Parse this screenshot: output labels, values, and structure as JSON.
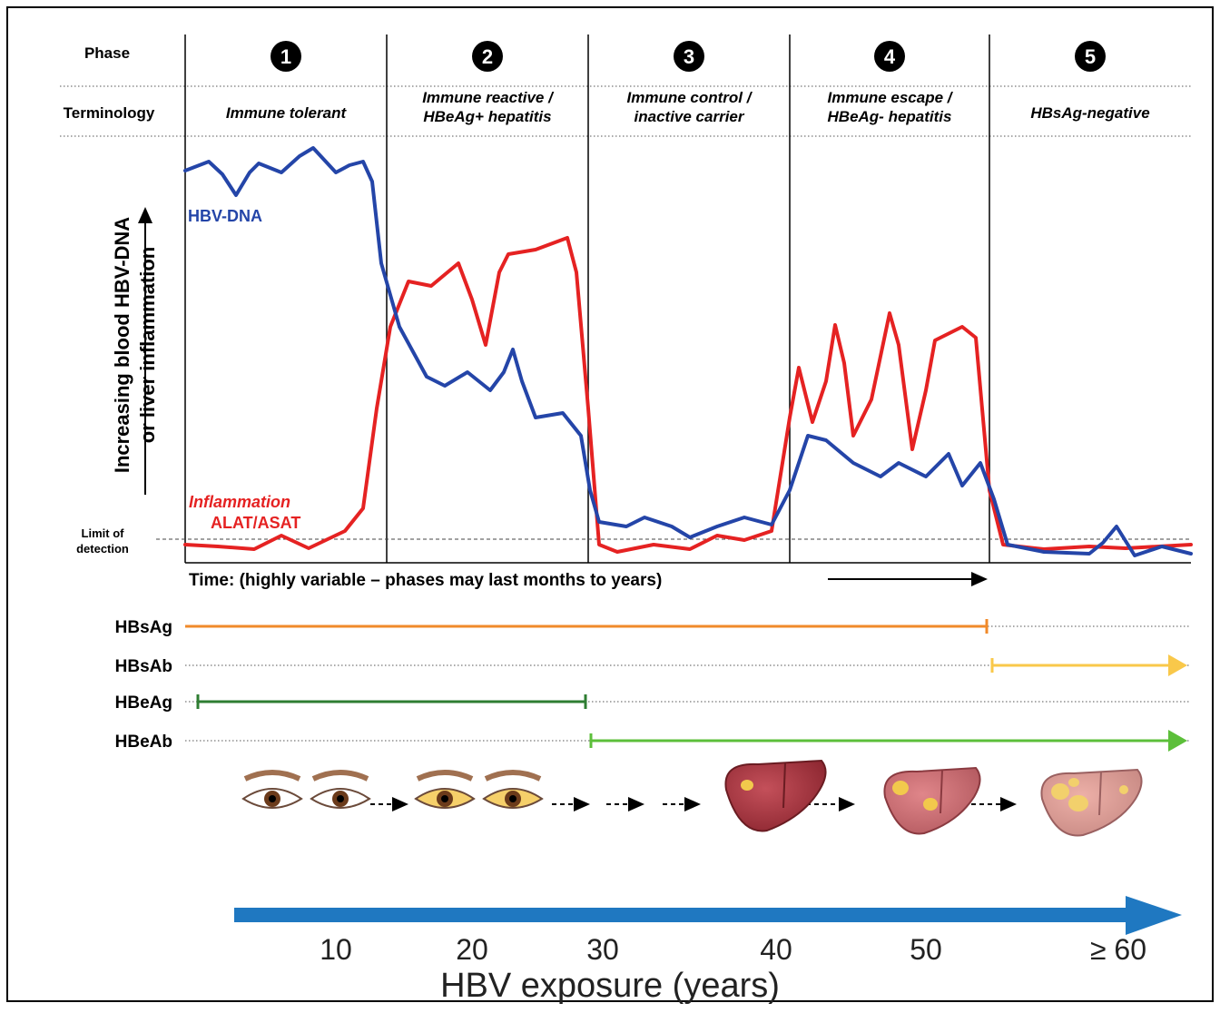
{
  "header": {
    "phase": "Phase",
    "terminology": "Terminology"
  },
  "phases": [
    {
      "number": "1",
      "terminology": [
        "Immune tolerant"
      ]
    },
    {
      "number": "2",
      "terminology": [
        "Immune reactive /",
        "HBeAg+ hepatitis"
      ]
    },
    {
      "number": "3",
      "terminology": [
        "Immune control /",
        "inactive carrier"
      ]
    },
    {
      "number": "4",
      "terminology": [
        "Immune escape /",
        "HBeAg- hepatitis"
      ]
    },
    {
      "number": "5",
      "terminology": [
        "HBsAg-negative"
      ]
    }
  ],
  "graph": {
    "y_label": [
      "Increasing blood HBV-DNA",
      "or liver inflammation"
    ],
    "hbv_dna_label": "HBV-DNA",
    "inflammation_label": [
      "Inflammation",
      "ALAT/ASAT"
    ],
    "limit_label": [
      "Limit of",
      "detection"
    ],
    "time_label": "Time: (highly variable – phases may last months to years)"
  },
  "markers": [
    "HBsAg",
    "HBsAb",
    "HBeAg",
    "HBeAb"
  ],
  "exposure": {
    "ages": [
      "10",
      "20",
      "30",
      "40",
      "50",
      "≥ 60"
    ],
    "label": "HBV exposure (years)"
  }
}
